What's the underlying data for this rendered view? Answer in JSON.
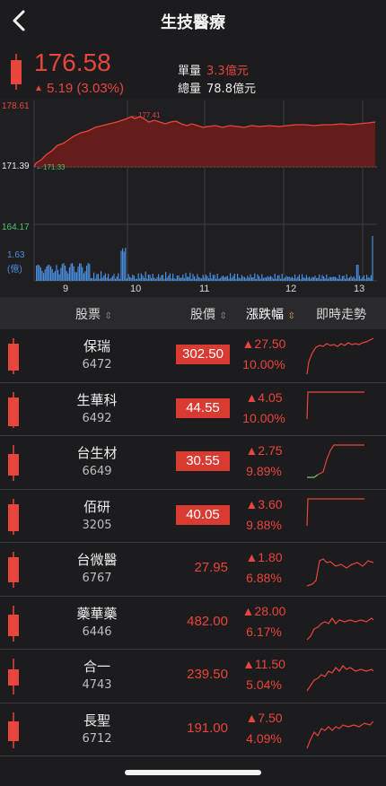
{
  "header": {
    "title": "生技醫療",
    "back_icon": "chevron-left-icon"
  },
  "quote": {
    "price": "176.58",
    "change": "5.19 (3.03%)",
    "change_arrow": "▲",
    "volume_label": "單量",
    "volume_value": "3.3億元",
    "total_label": "總量",
    "total_value": "78.8億元"
  },
  "intraday_chart": {
    "y_high": "178.61",
    "y_ref": "171.39",
    "y_low": "164.17",
    "marker_high": "177.41",
    "marker_low": "171.33",
    "vol_max": "1.63",
    "vol_unit": "(億)",
    "x_ticks": [
      "9",
      "10",
      "11",
      "12",
      "13"
    ]
  },
  "table": {
    "col_stock": "股票",
    "col_price": "股價",
    "col_change": "漲跌幅",
    "col_trend": "即時走勢",
    "rows": [
      {
        "name": "保瑞",
        "code": "6472",
        "price": "302.50",
        "limit": true,
        "arrow": "▲",
        "change": "27.50",
        "pct": "10.00%"
      },
      {
        "name": "生華科",
        "code": "6492",
        "price": "44.55",
        "limit": true,
        "arrow": "▲",
        "change": "4.05",
        "pct": "10.00%"
      },
      {
        "name": "台生材",
        "code": "6649",
        "price": "30.55",
        "limit": true,
        "arrow": "▲",
        "change": "2.75",
        "pct": "9.89%"
      },
      {
        "name": "佰研",
        "code": "3205",
        "price": "40.05",
        "limit": true,
        "arrow": "▲",
        "change": "3.60",
        "pct": "9.88%"
      },
      {
        "name": "台微醫",
        "code": "6767",
        "price": "27.95",
        "limit": false,
        "arrow": "▲",
        "change": "1.80",
        "pct": "6.88%"
      },
      {
        "name": "藥華藥",
        "code": "6446",
        "price": "482.00",
        "limit": false,
        "arrow": "▲",
        "change": "28.00",
        "pct": "6.17%"
      },
      {
        "name": "合一",
        "code": "4743",
        "price": "239.50",
        "limit": false,
        "arrow": "▲",
        "change": "11.50",
        "pct": "5.04%"
      },
      {
        "name": "長聖",
        "code": "6712",
        "price": "191.00",
        "limit": false,
        "arrow": "▲",
        "change": "7.50",
        "pct": "4.09%"
      }
    ]
  },
  "colors": {
    "up": "#e8453c",
    "down": "#4fc46a",
    "volume": "#4a8fe0",
    "bg": "#1c1c1e"
  }
}
